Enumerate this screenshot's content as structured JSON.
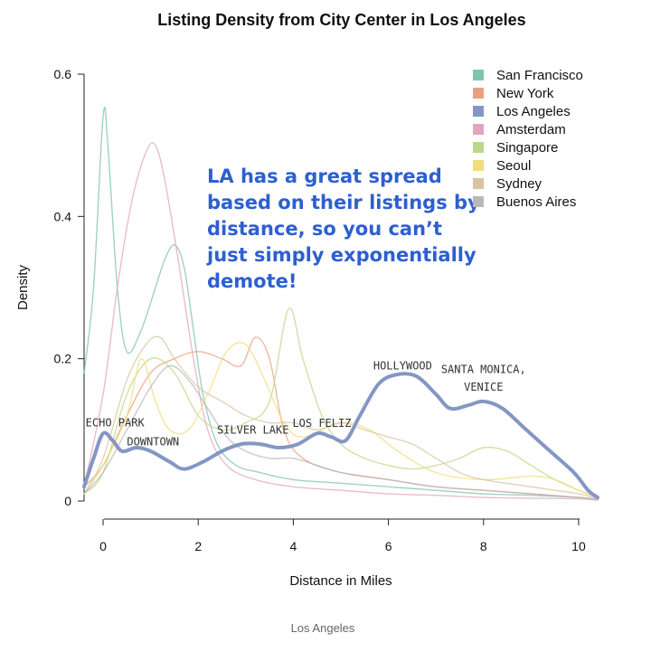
{
  "caption": "Los Angeles",
  "callout": {
    "lines": [
      "LA has a great spread",
      "based on their listings by",
      "distance, so you can’t",
      "just simply exponentially",
      "demote!"
    ],
    "color": "#2d5fd1"
  },
  "chart_data": {
    "type": "line",
    "title": "Listing Density from City Center in Los Angeles",
    "xlabel": "Distance in Miles",
    "ylabel": "Density",
    "xlim": [
      -0.4,
      10.4
    ],
    "ylim": [
      0,
      0.6
    ],
    "x_ticks": [
      "0",
      "2",
      "4",
      "6",
      "8",
      "10"
    ],
    "y_ticks": [
      "0",
      "0.2",
      "0.4",
      "0.6"
    ],
    "legend_position": "top-right",
    "highlight_series": "Los Angeles",
    "series": [
      {
        "name": "San Francisco",
        "color": "#7fc4ac",
        "points": [
          [
            -0.4,
            0.18
          ],
          [
            -0.2,
            0.3
          ],
          [
            0,
            0.54
          ],
          [
            0.1,
            0.5
          ],
          [
            0.3,
            0.3
          ],
          [
            0.5,
            0.21
          ],
          [
            0.8,
            0.24
          ],
          [
            1.1,
            0.3
          ],
          [
            1.3,
            0.34
          ],
          [
            1.5,
            0.36
          ],
          [
            1.7,
            0.33
          ],
          [
            1.9,
            0.24
          ],
          [
            2.1,
            0.15
          ],
          [
            2.4,
            0.08
          ],
          [
            2.8,
            0.05
          ],
          [
            3.3,
            0.04
          ],
          [
            4,
            0.03
          ],
          [
            5,
            0.025
          ],
          [
            6,
            0.02
          ],
          [
            7,
            0.015
          ],
          [
            8,
            0.01
          ],
          [
            9,
            0.008
          ],
          [
            10,
            0.005
          ],
          [
            10.4,
            0.002
          ]
        ]
      },
      {
        "name": "New York",
        "color": "#e8a080",
        "points": [
          [
            -0.4,
            0.02
          ],
          [
            0,
            0.05
          ],
          [
            0.5,
            0.12
          ],
          [
            1,
            0.18
          ],
          [
            1.5,
            0.2
          ],
          [
            2,
            0.21
          ],
          [
            2.5,
            0.2
          ],
          [
            2.9,
            0.19
          ],
          [
            3.2,
            0.23
          ],
          [
            3.5,
            0.2
          ],
          [
            3.8,
            0.1
          ],
          [
            4.2,
            0.06
          ],
          [
            5,
            0.04
          ],
          [
            6,
            0.03
          ],
          [
            7,
            0.02
          ],
          [
            8,
            0.015
          ],
          [
            9,
            0.01
          ],
          [
            10,
            0.005
          ],
          [
            10.4,
            0.002
          ]
        ]
      },
      {
        "name": "Los Angeles",
        "color": "#8496c4",
        "points": [
          [
            -0.4,
            0.02
          ],
          [
            -0.2,
            0.06
          ],
          [
            0,
            0.095
          ],
          [
            0.2,
            0.085
          ],
          [
            0.4,
            0.07
          ],
          [
            0.7,
            0.075
          ],
          [
            1,
            0.07
          ],
          [
            1.4,
            0.055
          ],
          [
            1.7,
            0.045
          ],
          [
            2.1,
            0.055
          ],
          [
            2.5,
            0.07
          ],
          [
            2.9,
            0.08
          ],
          [
            3.3,
            0.08
          ],
          [
            3.7,
            0.075
          ],
          [
            4.1,
            0.08
          ],
          [
            4.5,
            0.095
          ],
          [
            4.8,
            0.09
          ],
          [
            5.1,
            0.085
          ],
          [
            5.4,
            0.12
          ],
          [
            5.8,
            0.165
          ],
          [
            6.2,
            0.178
          ],
          [
            6.6,
            0.175
          ],
          [
            7,
            0.15
          ],
          [
            7.3,
            0.13
          ],
          [
            7.7,
            0.135
          ],
          [
            8,
            0.14
          ],
          [
            8.4,
            0.13
          ],
          [
            8.9,
            0.1
          ],
          [
            9.4,
            0.07
          ],
          [
            9.9,
            0.04
          ],
          [
            10.2,
            0.015
          ],
          [
            10.4,
            0.005
          ]
        ]
      },
      {
        "name": "Amsterdam",
        "color": "#e3a5bd",
        "points": [
          [
            -0.4,
            0.02
          ],
          [
            0,
            0.15
          ],
          [
            0.3,
            0.3
          ],
          [
            0.6,
            0.42
          ],
          [
            0.9,
            0.49
          ],
          [
            1.1,
            0.5
          ],
          [
            1.3,
            0.45
          ],
          [
            1.6,
            0.33
          ],
          [
            1.9,
            0.2
          ],
          [
            2.2,
            0.1
          ],
          [
            2.6,
            0.05
          ],
          [
            3.2,
            0.03
          ],
          [
            4,
            0.02
          ],
          [
            5,
            0.015
          ],
          [
            6,
            0.01
          ],
          [
            7,
            0.008
          ],
          [
            8,
            0.005
          ],
          [
            9,
            0.004
          ],
          [
            10,
            0.003
          ],
          [
            10.4,
            0.001
          ]
        ]
      },
      {
        "name": "Singapore",
        "color": "#bcd88a",
        "points": [
          [
            -0.4,
            0.01
          ],
          [
            0,
            0.04
          ],
          [
            0.5,
            0.15
          ],
          [
            1,
            0.2
          ],
          [
            1.5,
            0.18
          ],
          [
            2,
            0.12
          ],
          [
            2.5,
            0.1
          ],
          [
            3,
            0.11
          ],
          [
            3.5,
            0.14
          ],
          [
            3.9,
            0.27
          ],
          [
            4.2,
            0.2
          ],
          [
            4.6,
            0.12
          ],
          [
            5,
            0.08
          ],
          [
            5.5,
            0.06
          ],
          [
            6,
            0.05
          ],
          [
            6.5,
            0.045
          ],
          [
            7,
            0.05
          ],
          [
            7.5,
            0.06
          ],
          [
            8,
            0.075
          ],
          [
            8.5,
            0.07
          ],
          [
            9,
            0.05
          ],
          [
            9.5,
            0.03
          ],
          [
            10,
            0.015
          ],
          [
            10.4,
            0.005
          ]
        ]
      },
      {
        "name": "Seoul",
        "color": "#f2dd7a",
        "points": [
          [
            -0.4,
            0.01
          ],
          [
            0,
            0.05
          ],
          [
            0.5,
            0.12
          ],
          [
            0.8,
            0.2
          ],
          [
            1.1,
            0.14
          ],
          [
            1.4,
            0.1
          ],
          [
            1.8,
            0.1
          ],
          [
            2.2,
            0.15
          ],
          [
            2.6,
            0.21
          ],
          [
            3,
            0.22
          ],
          [
            3.4,
            0.17
          ],
          [
            3.8,
            0.11
          ],
          [
            4.2,
            0.09
          ],
          [
            5,
            0.11
          ],
          [
            5.6,
            0.1
          ],
          [
            6.2,
            0.07
          ],
          [
            7,
            0.04
          ],
          [
            8,
            0.03
          ],
          [
            9,
            0.035
          ],
          [
            9.5,
            0.03
          ],
          [
            10,
            0.015
          ],
          [
            10.4,
            0.005
          ]
        ]
      },
      {
        "name": "Sydney",
        "color": "#d8c4a0",
        "points": [
          [
            -0.4,
            0.01
          ],
          [
            0,
            0.06
          ],
          [
            0.5,
            0.17
          ],
          [
            0.9,
            0.22
          ],
          [
            1.2,
            0.23
          ],
          [
            1.5,
            0.2
          ],
          [
            2,
            0.16
          ],
          [
            2.5,
            0.14
          ],
          [
            3,
            0.12
          ],
          [
            3.5,
            0.11
          ],
          [
            4,
            0.11
          ],
          [
            4.5,
            0.1
          ],
          [
            5,
            0.11
          ],
          [
            5.5,
            0.1
          ],
          [
            6,
            0.09
          ],
          [
            6.5,
            0.08
          ],
          [
            7,
            0.06
          ],
          [
            7.5,
            0.04
          ],
          [
            8,
            0.03
          ],
          [
            9,
            0.02
          ],
          [
            10,
            0.01
          ],
          [
            10.4,
            0.003
          ]
        ]
      },
      {
        "name": "Buenos Aires",
        "color": "#b8b8b8",
        "points": [
          [
            -0.4,
            0.01
          ],
          [
            0,
            0.04
          ],
          [
            0.5,
            0.1
          ],
          [
            1,
            0.16
          ],
          [
            1.4,
            0.19
          ],
          [
            1.8,
            0.17
          ],
          [
            2.2,
            0.13
          ],
          [
            2.6,
            0.09
          ],
          [
            3,
            0.07
          ],
          [
            3.5,
            0.06
          ],
          [
            4,
            0.06
          ],
          [
            4.5,
            0.05
          ],
          [
            5,
            0.04
          ],
          [
            6,
            0.03
          ],
          [
            7,
            0.02
          ],
          [
            8,
            0.015
          ],
          [
            9,
            0.01
          ],
          [
            10,
            0.005
          ],
          [
            10.4,
            0.002
          ]
        ]
      }
    ],
    "annotations": [
      {
        "text": "ECHO PARK",
        "x": 0.25,
        "y": 0.105
      },
      {
        "text": "DOWNTOWN",
        "x": 1.05,
        "y": 0.078
      },
      {
        "text": "SILVER LAKE",
        "x": 3.15,
        "y": 0.095
      },
      {
        "text": "LOS FELIZ",
        "x": 4.6,
        "y": 0.104
      },
      {
        "text": "HOLLYWOOD",
        "x": 6.3,
        "y": 0.185
      },
      {
        "text": "SANTA MONICA,",
        "x": 8.0,
        "y": 0.18
      },
      {
        "text": "VENICE",
        "x": 8.0,
        "y": 0.155
      }
    ]
  }
}
